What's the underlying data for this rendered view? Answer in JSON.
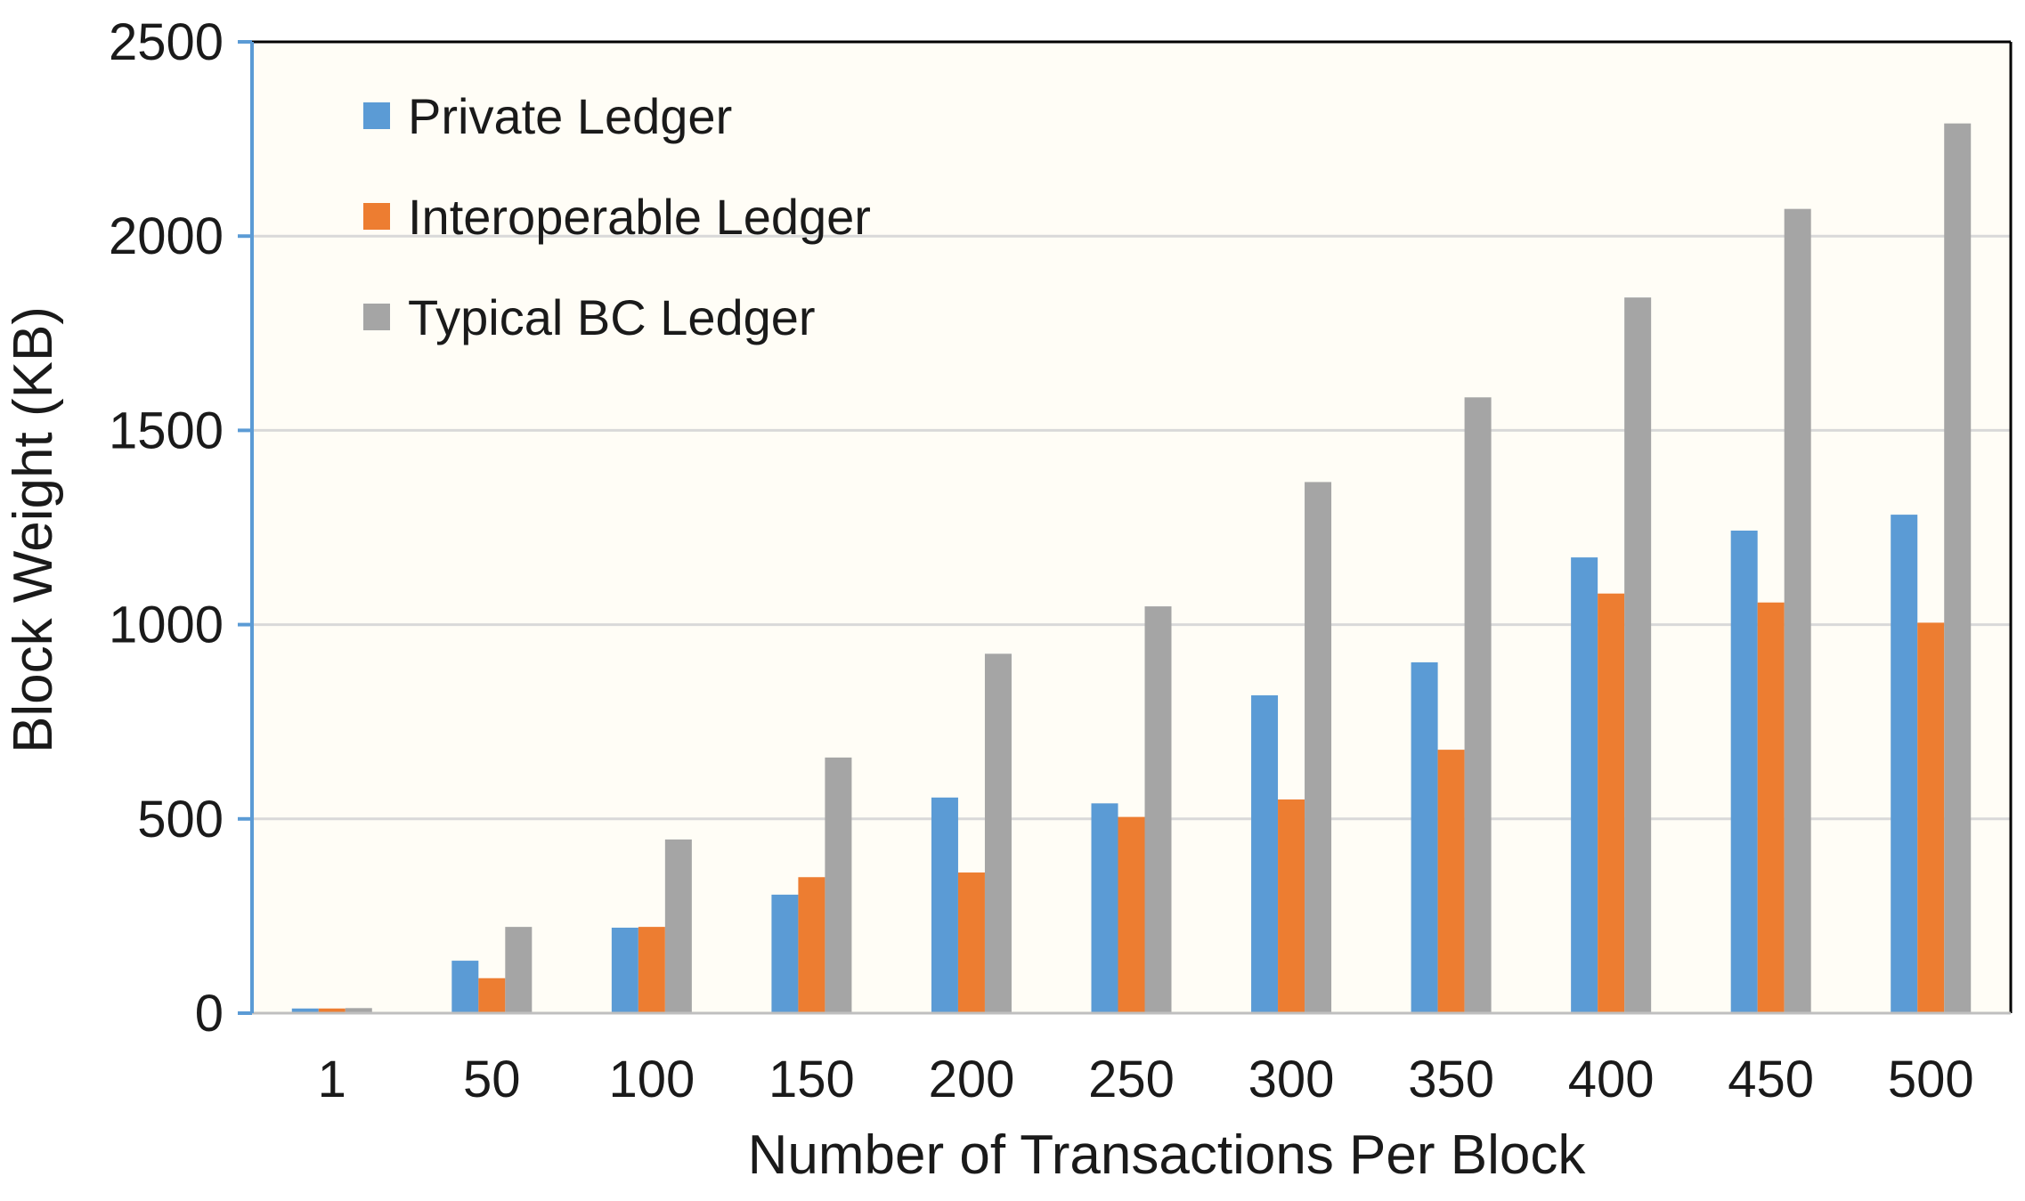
{
  "chart_data": {
    "type": "bar",
    "title": "",
    "xlabel": "Number of Transactions Per Block",
    "ylabel": "Block Weight (KB)",
    "ylim": [
      0,
      2500
    ],
    "yticks": [
      "0",
      "500",
      "1000",
      "1500",
      "2000",
      "2500"
    ],
    "grid": true,
    "legend_position": "top-left",
    "categories": [
      "1",
      "50",
      "100",
      "150",
      "200",
      "250",
      "300",
      "350",
      "400",
      "450",
      "500"
    ],
    "series": [
      {
        "name": "Private Ledger",
        "color": "#5b9bd5",
        "values": [
          12,
          135,
          220,
          305,
          555,
          540,
          818,
          903,
          1173,
          1242,
          1283
        ]
      },
      {
        "name": "Interoperable Ledger",
        "color": "#ed7d31",
        "values": [
          12,
          90,
          222,
          350,
          362,
          505,
          550,
          678,
          1080,
          1057,
          1005
        ]
      },
      {
        "name": "Typical BC Ledger",
        "color": "#a5a5a5",
        "values": [
          13,
          222,
          447,
          658,
          925,
          1047,
          1367,
          1585,
          1842,
          2070,
          2290
        ]
      }
    ],
    "colors": {
      "plot_background": "#fffdf6",
      "gridline": "#d9d9d9",
      "y_axis": "#5b9bd5",
      "frame": "#000000",
      "last_category_label": "#595959"
    }
  }
}
